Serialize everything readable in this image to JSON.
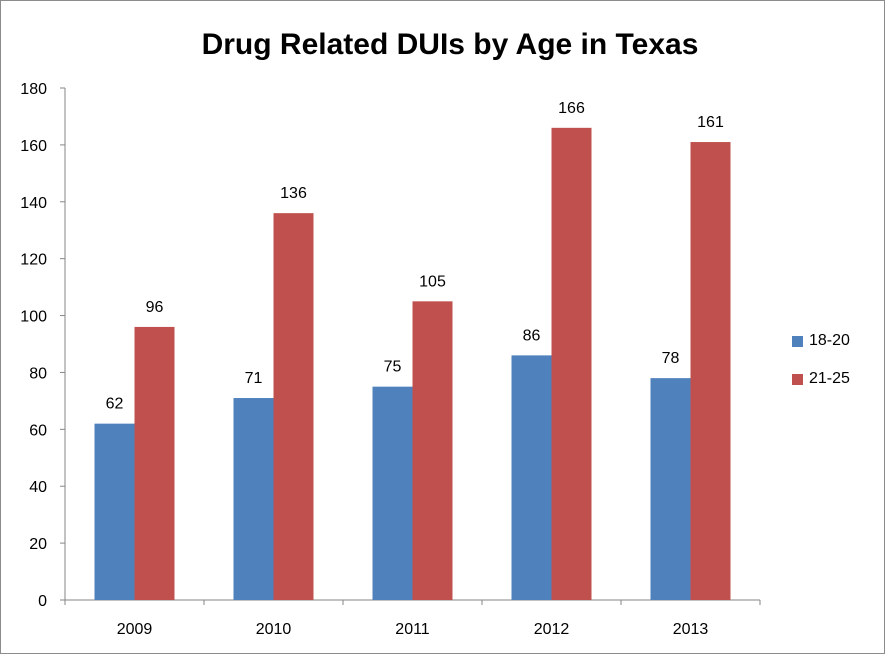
{
  "chart_data": {
    "type": "bar",
    "title": "Drug Related DUIs by Age in Texas",
    "categories": [
      "2009",
      "2010",
      "2011",
      "2012",
      "2013"
    ],
    "series": [
      {
        "name": "18-20",
        "color": "#4f81bd",
        "values": [
          62,
          71,
          75,
          86,
          78
        ]
      },
      {
        "name": "21-25",
        "color": "#c0504d",
        "values": [
          96,
          136,
          105,
          166,
          161
        ]
      }
    ],
    "ylim": [
      0,
      180
    ],
    "yticks": [
      "0",
      "20",
      "40",
      "60",
      "80",
      "100",
      "120",
      "140",
      "160",
      "180"
    ],
    "data_labels": true,
    "grid": false,
    "legend_position": "right"
  }
}
